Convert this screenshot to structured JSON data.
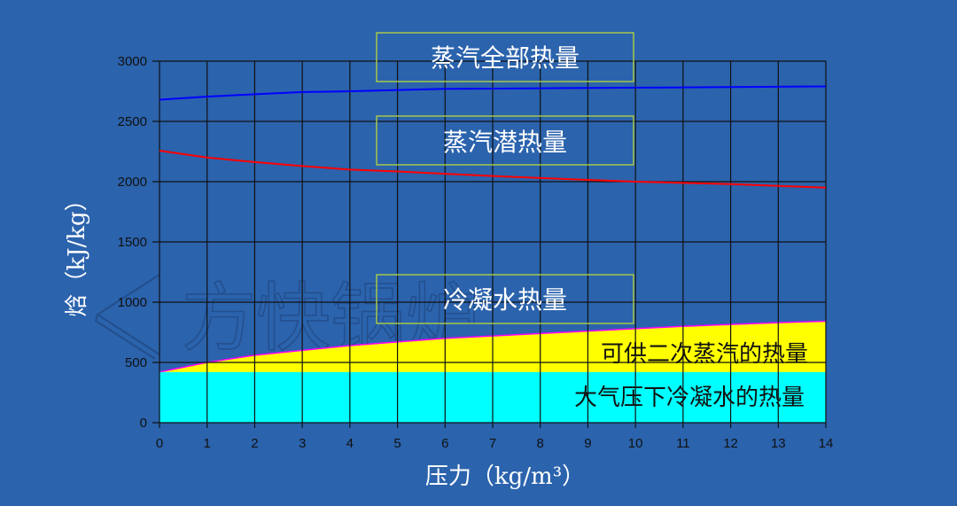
{
  "chart_data": {
    "type": "area",
    "xlabel": "压力（kg/m³）",
    "ylabel": "焓（kJ/kg）",
    "xlim": [
      0,
      14
    ],
    "ylim": [
      0,
      3000
    ],
    "xticks": [
      "0",
      "1",
      "2",
      "3",
      "4",
      "5",
      "6",
      "7",
      "8",
      "9",
      "10",
      "11",
      "12",
      "13",
      "14"
    ],
    "yticks": [
      "0",
      "500",
      "1000",
      "1500",
      "2000",
      "2500",
      "3000"
    ],
    "grid": true,
    "x": [
      0,
      1,
      2,
      3,
      4,
      5,
      6,
      7,
      8,
      9,
      10,
      11,
      12,
      13,
      14
    ],
    "series": [
      {
        "name": "蒸汽全部热量",
        "kind": "line",
        "color": "#0000ff",
        "values": [
          2680,
          2706,
          2725,
          2744,
          2750,
          2760,
          2770,
          2772,
          2775,
          2778,
          2780,
          2782,
          2785,
          2788,
          2790
        ]
      },
      {
        "name": "蒸汽潜热量",
        "kind": "line",
        "color": "#ff0000",
        "values": [
          2257,
          2200,
          2163,
          2130,
          2100,
          2085,
          2065,
          2047,
          2030,
          2015,
          2000,
          1990,
          1980,
          1965,
          1950
        ]
      },
      {
        "name": "可供二次蒸汽的热量",
        "kind": "area",
        "color": "#ffff00",
        "edge": "#ff00ff",
        "values": [
          420,
          500,
          560,
          600,
          640,
          670,
          700,
          720,
          740,
          760,
          780,
          800,
          815,
          830,
          842
        ]
      },
      {
        "name": "大气压下冷凝水的热量",
        "kind": "area",
        "color": "#00ffff",
        "values": [
          420,
          420,
          420,
          420,
          420,
          420,
          420,
          420,
          420,
          420,
          420,
          420,
          420,
          420,
          420
        ]
      }
    ],
    "annotations": {
      "total_steam_heat": "蒸汽全部热量",
      "latent_heat": "蒸汽潜热量",
      "condensate_heat": "冷凝水热量",
      "flash_steam_heat": "可供二次蒸汽的热量",
      "atm_condensate_heat": "大气压下冷凝水的热量"
    },
    "annotation_box_color": "#a6c84a"
  },
  "watermark": "方快锅炉"
}
